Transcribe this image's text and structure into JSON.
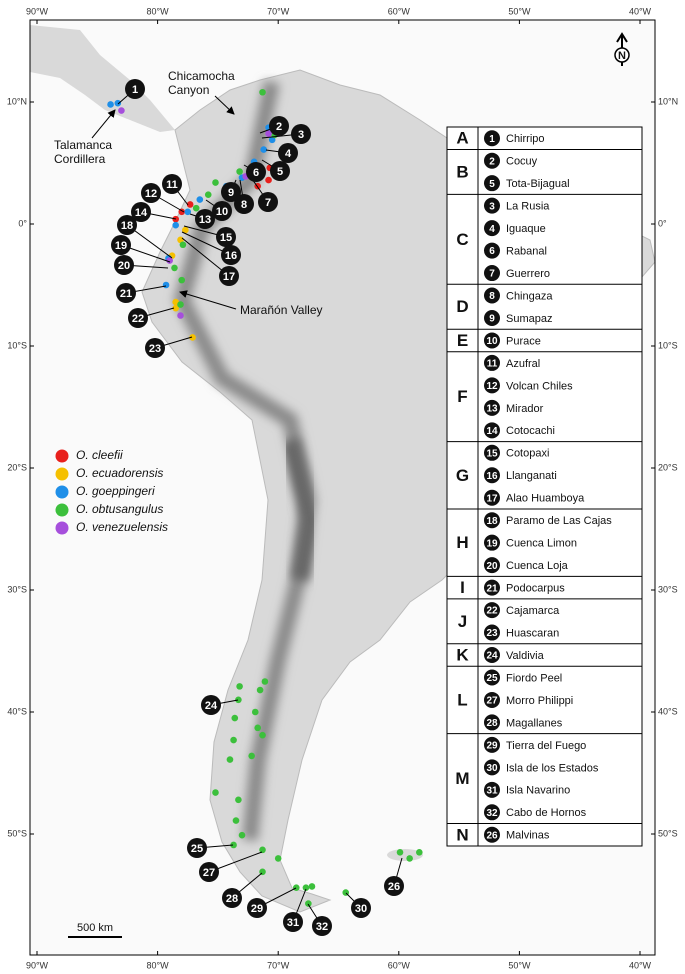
{
  "map": {
    "lon_ticks": [
      {
        "value": -90,
        "label": "90°W"
      },
      {
        "value": -80,
        "label": "80°W"
      },
      {
        "value": -70,
        "label": "70°W"
      },
      {
        "value": -60,
        "label": "60°W"
      },
      {
        "value": -50,
        "label": "50°W"
      },
      {
        "value": -40,
        "label": "40°W"
      }
    ],
    "lat_ticks": [
      {
        "value": 10,
        "label": "10°N"
      },
      {
        "value": 0,
        "label": "0°"
      },
      {
        "value": -10,
        "label": "10°S"
      },
      {
        "value": -20,
        "label": "20°S"
      },
      {
        "value": -30,
        "label": "30°S"
      },
      {
        "value": -40,
        "label": "40°S"
      },
      {
        "value": -50,
        "label": "50°S"
      }
    ],
    "annotations": {
      "chicamocha": [
        "Chicamocha",
        "Canyon"
      ],
      "talamanca": [
        "Talamanca",
        "Cordillera"
      ],
      "maranon": "Marañón Valley"
    },
    "scale_bar": "500 km",
    "north": "N",
    "site_labels": [
      "1",
      "2",
      "3",
      "4",
      "5",
      "6",
      "7",
      "8",
      "9",
      "10",
      "11",
      "12",
      "13",
      "14",
      "15",
      "16",
      "17",
      "18",
      "19",
      "20",
      "21",
      "22",
      "23",
      "24",
      "25",
      "26",
      "27",
      "28",
      "29",
      "30",
      "31",
      "32"
    ],
    "legend": [
      {
        "name": "O. cleefii",
        "color": "#e8201c",
        "points": [
          [
            -70.7,
            4.6
          ],
          [
            -69.7,
            4.3
          ],
          [
            -70.8,
            3.6
          ],
          [
            -71.7,
            3.1
          ],
          [
            -77.3,
            1.6
          ],
          [
            -78.0,
            1.0
          ],
          [
            -78.5,
            0.4
          ]
        ]
      },
      {
        "name": "O. ecuadorensis",
        "color": "#f5c000",
        "points": [
          [
            -77.7,
            -0.5
          ],
          [
            -78.1,
            -1.3
          ],
          [
            -78.8,
            -2.6
          ],
          [
            -78.5,
            -6.4
          ],
          [
            -78.5,
            -6.9
          ],
          [
            -77.1,
            -9.3
          ]
        ]
      },
      {
        "name": "O. goeppingeri",
        "color": "#1f8fe8",
        "points": [
          [
            -83.9,
            9.8
          ],
          [
            -83.3,
            9.9
          ],
          [
            -70.8,
            7.9
          ],
          [
            -70.5,
            6.9
          ],
          [
            -71.2,
            6.1
          ],
          [
            -72.0,
            5.1
          ],
          [
            -73.0,
            3.8
          ],
          [
            -74.3,
            3.1
          ],
          [
            -76.5,
            2.0
          ],
          [
            -77.5,
            1.0
          ],
          [
            -78.5,
            -0.1
          ],
          [
            -79.1,
            -2.8
          ],
          [
            -79.3,
            -5.0
          ]
        ]
      },
      {
        "name": "O. obtusangulus",
        "color": "#3cc03c",
        "points": [
          [
            -71.3,
            10.8
          ],
          [
            -70.3,
            7.3
          ],
          [
            -73.2,
            4.3
          ],
          [
            -75.2,
            3.4
          ],
          [
            -75.8,
            2.4
          ],
          [
            -76.8,
            1.3
          ],
          [
            -77.9,
            -1.7
          ],
          [
            -78.6,
            -3.6
          ],
          [
            -78.0,
            -4.6
          ],
          [
            -78.1,
            -6.6
          ],
          [
            -73.2,
            -37.9
          ],
          [
            -71.5,
            -38.2
          ],
          [
            -71.1,
            -37.5
          ],
          [
            -73.3,
            -39.0
          ],
          [
            -73.6,
            -40.5
          ],
          [
            -71.9,
            -40.0
          ],
          [
            -71.7,
            -41.3
          ],
          [
            -71.3,
            -41.9
          ],
          [
            -73.7,
            -42.3
          ],
          [
            -74.0,
            -43.9
          ],
          [
            -72.2,
            -43.6
          ],
          [
            -75.2,
            -46.6
          ],
          [
            -73.3,
            -47.2
          ],
          [
            -73.5,
            -48.9
          ],
          [
            -73.0,
            -50.1
          ],
          [
            -73.7,
            -50.9
          ],
          [
            -71.3,
            -51.3
          ],
          [
            -70.0,
            -52.0
          ],
          [
            -71.3,
            -53.1
          ],
          [
            -68.5,
            -54.4
          ],
          [
            -67.7,
            -54.4
          ],
          [
            -67.2,
            -54.3
          ],
          [
            -67.5,
            -55.7
          ],
          [
            -64.4,
            -54.8
          ],
          [
            -59.9,
            -51.5
          ],
          [
            -59.1,
            -52.0
          ],
          [
            -58.3,
            -51.5
          ]
        ]
      },
      {
        "name": "O. venezuelensis",
        "color": "#a64fdc",
        "points": [
          [
            -83.0,
            9.3
          ],
          [
            -70.8,
            7.4
          ],
          [
            -72.7,
            3.9
          ],
          [
            -79.0,
            -3.0
          ],
          [
            -78.1,
            -7.5
          ]
        ]
      }
    ]
  },
  "table": {
    "groups": [
      {
        "letter": "A",
        "sites": [
          {
            "number": "1",
            "name": "Chirripo"
          }
        ]
      },
      {
        "letter": "B",
        "sites": [
          {
            "number": "2",
            "name": "Cocuy"
          },
          {
            "number": "5",
            "name": "Tota-Bijagual"
          }
        ]
      },
      {
        "letter": "C",
        "sites": [
          {
            "number": "3",
            "name": "La Rusia"
          },
          {
            "number": "4",
            "name": "Iguaque"
          },
          {
            "number": "6",
            "name": "Rabanal"
          },
          {
            "number": "7",
            "name": "Guerrero"
          }
        ]
      },
      {
        "letter": "D",
        "sites": [
          {
            "number": "8",
            "name": "Chingaza"
          },
          {
            "number": "9",
            "name": "Sumapaz"
          }
        ]
      },
      {
        "letter": "E",
        "sites": [
          {
            "number": "10",
            "name": "Purace"
          }
        ]
      },
      {
        "letter": "F",
        "sites": [
          {
            "number": "11",
            "name": "Azufral"
          },
          {
            "number": "12",
            "name": "Volcan Chiles"
          },
          {
            "number": "13",
            "name": "Mirador"
          },
          {
            "number": "14",
            "name": "Cotocachi"
          }
        ]
      },
      {
        "letter": "G",
        "sites": [
          {
            "number": "15",
            "name": "Cotopaxi"
          },
          {
            "number": "16",
            "name": "Llanganati"
          },
          {
            "number": "17",
            "name": "Alao Huamboya"
          }
        ]
      },
      {
        "letter": "H",
        "sites": [
          {
            "number": "18",
            "name": "Paramo de Las Cajas"
          },
          {
            "number": "19",
            "name": "Cuenca Limon"
          },
          {
            "number": "20",
            "name": "Cuenca Loja"
          }
        ]
      },
      {
        "letter": "I",
        "sites": [
          {
            "number": "21",
            "name": "Podocarpus"
          }
        ]
      },
      {
        "letter": "J",
        "sites": [
          {
            "number": "22",
            "name": "Cajamarca"
          },
          {
            "number": "23",
            "name": "Huascaran"
          }
        ]
      },
      {
        "letter": "K",
        "sites": [
          {
            "number": "24",
            "name": "Valdivia"
          }
        ]
      },
      {
        "letter": "L",
        "sites": [
          {
            "number": "25",
            "name": "Fiordo Peel"
          },
          {
            "number": "27",
            "name": "Morro Philippi"
          },
          {
            "number": "28",
            "name": "Magallanes"
          }
        ]
      },
      {
        "letter": "M",
        "sites": [
          {
            "number": "29",
            "name": "Tierra del Fuego"
          },
          {
            "number": "30",
            "name": "Isla de los Estados"
          },
          {
            "number": "31",
            "name": "Isla Navarino"
          },
          {
            "number": "32",
            "name": "Cabo de Hornos"
          }
        ]
      },
      {
        "letter": "N",
        "sites": [
          {
            "number": "26",
            "name": "Malvinas"
          }
        ]
      }
    ]
  }
}
